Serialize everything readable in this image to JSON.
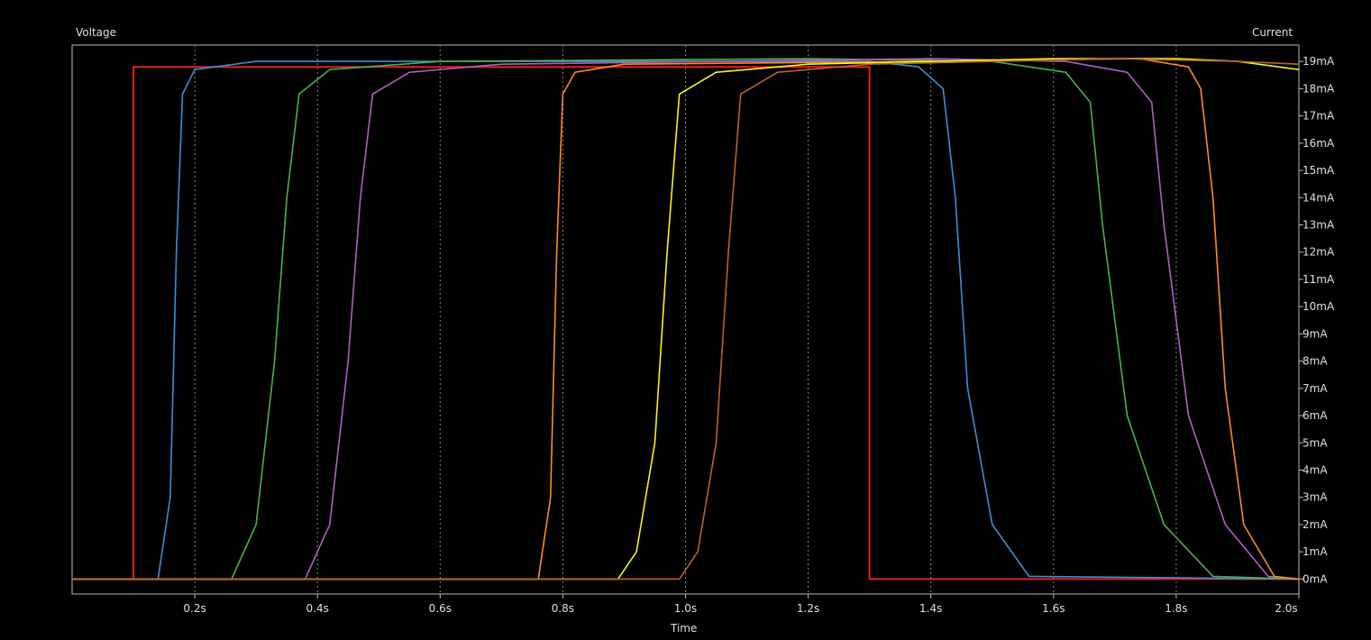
{
  "chart_data": {
    "type": "line",
    "title": "",
    "xlabel": "Time",
    "ylabel_left": "Voltage",
    "ylabel_right": "Current",
    "xlim": [
      0.0,
      2.0
    ],
    "ylim": [
      -0.55,
      19.6
    ],
    "x_unit": "s",
    "y_unit": "mA",
    "x_ticks": [
      0.2,
      0.4,
      0.6,
      0.8,
      1.0,
      1.2,
      1.4,
      1.6,
      1.8,
      2.0
    ],
    "x_tick_labels": [
      "0.2s",
      "0.4s",
      "0.6s",
      "0.8s",
      "1.0s",
      "1.2s",
      "1.4s",
      "1.6s",
      "1.8s",
      "2.0s"
    ],
    "y_ticks": [
      0,
      1,
      2,
      3,
      4,
      5,
      6,
      7,
      8,
      9,
      10,
      11,
      12,
      13,
      14,
      15,
      16,
      17,
      18,
      19
    ],
    "y_tick_labels": [
      "0mA",
      "1mA",
      "2mA",
      "3mA",
      "4mA",
      "5mA",
      "6mA",
      "7mA",
      "8mA",
      "9mA",
      "10mA",
      "11mA",
      "12mA",
      "13mA",
      "14mA",
      "15mA",
      "16mA",
      "17mA",
      "18mA",
      "19mA"
    ],
    "grid": "vertical-dotted",
    "legend": "none",
    "series": [
      {
        "color": "#e02020",
        "x": [
          0.0,
          0.1,
          0.1,
          1.3,
          1.3,
          2.0
        ],
        "y": [
          0,
          0,
          18.8,
          18.8,
          0,
          0
        ]
      },
      {
        "color": "#3d8fd6",
        "x": [
          0.0,
          0.14,
          0.16,
          0.17,
          0.18,
          0.2,
          0.3,
          1.3,
          1.38,
          1.42,
          1.44,
          1.46,
          1.5,
          1.56,
          2.0
        ],
        "y": [
          0,
          0,
          3,
          12,
          17.8,
          18.7,
          19.0,
          19.0,
          18.8,
          18.0,
          14,
          7,
          2,
          0.1,
          0
        ]
      },
      {
        "color": "#4caf50",
        "x": [
          0.0,
          0.26,
          0.3,
          0.33,
          0.35,
          0.37,
          0.42,
          0.6,
          1.2,
          1.5,
          1.62,
          1.66,
          1.68,
          1.72,
          1.78,
          1.86,
          2.0
        ],
        "y": [
          0,
          0,
          2,
          8,
          14,
          17.8,
          18.7,
          19.0,
          19.1,
          19.0,
          18.6,
          17.5,
          13,
          6,
          2,
          0.1,
          0
        ]
      },
      {
        "color": "#b060c0",
        "x": [
          0.0,
          0.38,
          0.42,
          0.45,
          0.47,
          0.49,
          0.55,
          0.7,
          1.4,
          1.62,
          1.72,
          1.76,
          1.78,
          1.82,
          1.88,
          1.95,
          2.0
        ],
        "y": [
          0,
          0,
          2,
          8,
          14,
          17.8,
          18.6,
          18.9,
          19.1,
          19.0,
          18.6,
          17.5,
          13,
          6,
          2,
          0.1,
          0
        ]
      },
      {
        "color": "#ff8c1a",
        "x": [
          0.0,
          0.76,
          0.78,
          0.79,
          0.8,
          0.82,
          0.9,
          1.4,
          1.74,
          1.82,
          1.84,
          1.86,
          1.88,
          1.91,
          1.96,
          2.0
        ],
        "y": [
          0,
          0,
          3,
          12,
          17.8,
          18.6,
          18.9,
          19.0,
          19.1,
          18.8,
          18.0,
          14,
          7,
          2,
          0.1,
          0
        ]
      },
      {
        "color": "#f5f520",
        "x": [
          0.0,
          0.89,
          0.92,
          0.95,
          0.97,
          0.99,
          1.05,
          1.2,
          1.6,
          1.8,
          1.9,
          2.0
        ],
        "y": [
          0,
          0,
          1,
          5,
          12,
          17.8,
          18.6,
          18.9,
          19.1,
          19.1,
          19.0,
          18.7
        ],
        "clip": true
      },
      {
        "color": "#b8642a",
        "x": [
          0.0,
          0.99,
          1.02,
          1.05,
          1.07,
          1.09,
          1.15,
          1.3,
          1.7,
          1.9,
          2.0
        ],
        "y": [
          0,
          0,
          1,
          5,
          12,
          17.8,
          18.6,
          18.9,
          19.1,
          19.0,
          18.9
        ],
        "clip": true
      }
    ]
  }
}
